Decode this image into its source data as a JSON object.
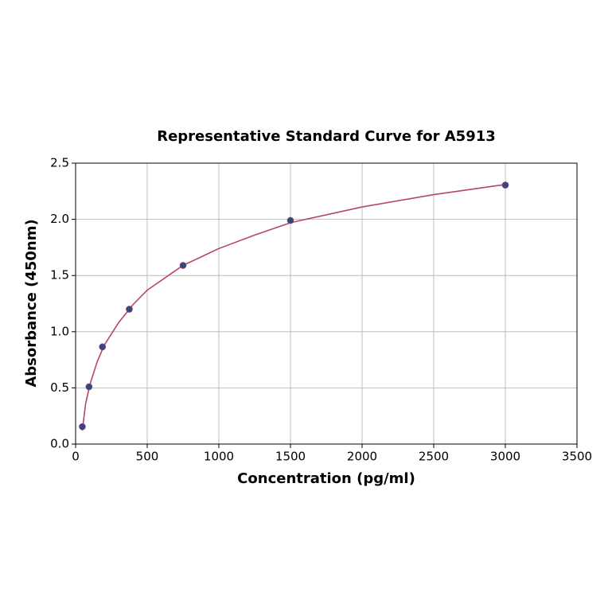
{
  "chart_data": {
    "type": "scatter",
    "title": "Representative Standard Curve for A5913",
    "x_label": "Concentration (pg/ml)",
    "y_label": "Absorbance (450nm)",
    "x": [
      46.875,
      93.75,
      187.5,
      375,
      750,
      1500,
      3000
    ],
    "values": [
      0.155,
      0.51,
      0.865,
      1.2,
      1.59,
      1.99,
      2.305
    ],
    "color": "#2f4b7c",
    "edge_color": "#7a3a7a",
    "fit": {
      "x": [
        46.875,
        70,
        100,
        150,
        200,
        300,
        400,
        500,
        750,
        1000,
        1250,
        1500,
        2000,
        2500,
        3000
      ],
      "values": [
        0.12,
        0.36,
        0.53,
        0.73,
        0.88,
        1.08,
        1.24,
        1.37,
        1.59,
        1.74,
        1.86,
        1.97,
        2.11,
        2.22,
        2.31
      ],
      "color": "#b5476b"
    },
    "xlim": [
      0,
      3500
    ],
    "xticks": [
      0,
      500,
      1000,
      1500,
      2000,
      2500,
      3000,
      3500
    ],
    "ylim": [
      0,
      2.5
    ],
    "yticks": [
      {
        "value": 0,
        "label": "0.0"
      },
      0.5,
      {
        "value": 1,
        "label": "1.0"
      },
      1.5,
      {
        "value": 2,
        "label": "2.0"
      },
      2.5
    ],
    "grid": true
  }
}
